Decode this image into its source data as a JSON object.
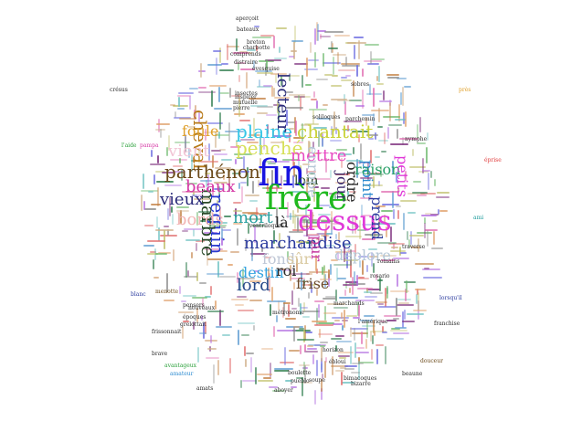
{
  "words": [
    {
      "id": "fin",
      "text": "fin",
      "color": "#1a14e0"
    },
    {
      "id": "frere",
      "text": "frère",
      "color": "#1fb91f"
    },
    {
      "id": "dessus",
      "text": "dessus",
      "color": "#e03ad8"
    },
    {
      "id": "marchandise",
      "text": "marchandise",
      "color": "#2a3a9e"
    },
    {
      "id": "cheval",
      "text": "cheval",
      "color": "#b77a1a"
    },
    {
      "id": "requin",
      "text": "requin",
      "color": "#2a3ad0"
    },
    {
      "id": "marbre",
      "text": "marbre",
      "color": "#2a4a2a"
    },
    {
      "id": "plaine",
      "text": "plaine",
      "color": "#36c6e6"
    },
    {
      "id": "chantait",
      "text": "chantait",
      "color": "#c9d23a"
    },
    {
      "id": "penche",
      "text": "penché",
      "color": "#d7e05a"
    },
    {
      "id": "mettre",
      "text": "mettre",
      "color": "#e84ac2"
    },
    {
      "id": "parthenon",
      "text": "parthénon",
      "color": "#6b4a1a"
    },
    {
      "id": "beaux",
      "text": "beaux",
      "color": "#d63aa6"
    },
    {
      "id": "vieux",
      "text": "vieux",
      "color": "#2a2a7a"
    },
    {
      "id": "bords",
      "text": "bords",
      "color": "#f2b5b5"
    },
    {
      "id": "mort",
      "text": "mort",
      "color": "#2aa0a0"
    },
    {
      "id": "la",
      "text": "là",
      "color": "#2a2a2a"
    },
    {
      "id": "fond",
      "text": "fond",
      "color": "#bfc7d6"
    },
    {
      "id": "sur",
      "text": "sûr",
      "color": "#d9c9a0"
    },
    {
      "id": "destin",
      "text": "destin",
      "color": "#36a3e0"
    },
    {
      "id": "lord",
      "text": "lord",
      "color": "#2a4a8a"
    },
    {
      "id": "roi",
      "text": "roi",
      "color": "#2a2a2a"
    },
    {
      "id": "frise",
      "text": "frise",
      "color": "#6b4a2a"
    },
    {
      "id": "deplore",
      "text": "déplore",
      "color": "#b5c7d6"
    },
    {
      "id": "pur",
      "text": "pur",
      "color": "#c53a9e"
    },
    {
      "id": "loin",
      "text": "loin",
      "color": "#2a4a2a"
    },
    {
      "id": "lecteur",
      "text": "lecteur",
      "color": "#2a2a7a"
    },
    {
      "id": "europe",
      "text": "europe",
      "color": "#b5c7d6"
    },
    {
      "id": "jour",
      "text": "jour",
      "color": "#3a2a6a"
    },
    {
      "id": "ordre",
      "text": "ordre",
      "color": "#2a2a2a"
    },
    {
      "id": "point",
      "text": "point",
      "color": "#2a8ad0"
    },
    {
      "id": "prend",
      "text": "prend",
      "color": "#2a3a9e"
    },
    {
      "id": "raison",
      "text": "raison",
      "color": "#2aa06a"
    },
    {
      "id": "petits",
      "text": "petits",
      "color": "#e03ad8"
    },
    {
      "id": "foule",
      "text": "foule",
      "color": "#e0a02a"
    },
    {
      "id": "vient",
      "text": "vient",
      "color": "#f2c5d5"
    },
    {
      "id": "ami",
      "text": "ami",
      "color": "#1a9a9a"
    },
    {
      "id": "eprise",
      "text": "éprise",
      "color": "#e03a3a"
    },
    {
      "id": "latide",
      "text": "l'aide",
      "color": "#2aa03a"
    },
    {
      "id": "pampa",
      "text": "pampa",
      "color": "#d63aa6"
    },
    {
      "id": "lorsquil",
      "text": "lorsqu'il",
      "color": "#2a3a9e"
    },
    {
      "id": "blanc",
      "text": "blanc",
      "color": "#2a3a9e"
    },
    {
      "id": "pres",
      "text": "près",
      "color": "#e0a02a"
    },
    {
      "id": "amateur",
      "text": "amateur",
      "color": "#2a8ad0"
    },
    {
      "id": "avantageux",
      "text": "avantageux",
      "color": "#2aa03a"
    },
    {
      "id": "brave",
      "text": "brave",
      "color": "#2a2a2a"
    },
    {
      "id": "douceur",
      "text": "douceur",
      "color": "#6b4a1a"
    },
    {
      "id": "beaune",
      "text": "beaune",
      "color": "#2a2a2a"
    },
    {
      "id": "menotte",
      "text": "menotte",
      "color": "#6b4a1a"
    },
    {
      "id": "cresus",
      "text": "crésus",
      "color": "#2a2a2a"
    },
    {
      "id": "aperçoit",
      "text": "aperçoit",
      "color": "#2a2a2a"
    },
    {
      "id": "bateaux",
      "text": "bateaux",
      "color": "#2a2a2a"
    },
    {
      "id": "breton",
      "text": "breton",
      "color": "#2a2a2a"
    },
    {
      "id": "charbotte",
      "text": "charbotte",
      "color": "#2a2a2a"
    },
    {
      "id": "comprends",
      "text": "comprends",
      "color": "#2a2a2a"
    },
    {
      "id": "distraire",
      "text": "distraire",
      "color": "#2a2a2a"
    },
    {
      "id": "evesquise",
      "text": "évesquise",
      "color": "#2a2a2a"
    },
    {
      "id": "insectes",
      "text": "insectes",
      "color": "#2a2a2a"
    },
    {
      "id": "inspirer",
      "text": "inspirer",
      "color": "#2a2a2a"
    },
    {
      "id": "pierre",
      "text": "pierre",
      "color": "#2a2a2a"
    },
    {
      "id": "mutuelle",
      "text": "mutuelle",
      "color": "#2a2a2a"
    },
    {
      "id": "sobres",
      "text": "sobres",
      "color": "#2a2a2a"
    },
    {
      "id": "latraverse",
      "text": "traverse",
      "color": "#2a2a2a"
    },
    {
      "id": "romains",
      "text": "romains",
      "color": "#2a2a2a"
    },
    {
      "id": "rosario",
      "text": "rosario",
      "color": "#2a2a2a"
    },
    {
      "id": "nymphe",
      "text": "nymphe",
      "color": "#2a2a2a"
    },
    {
      "id": "lamerique",
      "text": "l'amérique",
      "color": "#2a2a2a"
    },
    {
      "id": "parchemin",
      "text": "parchemin",
      "color": "#2a2a2a"
    },
    {
      "id": "soliloques",
      "text": "soliloques",
      "color": "#2a2a2a"
    },
    {
      "id": "marchands",
      "text": "marchands",
      "color": "#2a2a2a"
    },
    {
      "id": "ventriloques",
      "text": "ventriloques",
      "color": "#2a2a2a"
    },
    {
      "id": "metronome",
      "text": "métronome",
      "color": "#2a2a2a"
    },
    {
      "id": "frissonnait",
      "text": "frissonnait",
      "color": "#2a2a2a"
    },
    {
      "id": "grelottait",
      "text": "grelottait",
      "color": "#2a2a2a"
    },
    {
      "id": "nouveaux",
      "text": "nouveaux",
      "color": "#2a2a2a"
    },
    {
      "id": "pensers",
      "text": "pensers",
      "color": "#2a2a2a"
    },
    {
      "id": "epoques",
      "text": "époques",
      "color": "#2a2a2a"
    },
    {
      "id": "boulette",
      "text": "boulette",
      "color": "#2a2a2a"
    },
    {
      "id": "franchise",
      "text": "franchise",
      "color": "#2a2a2a"
    },
    {
      "id": "bimacoques",
      "text": "bimacoques",
      "color": "#2a2a2a"
    },
    {
      "id": "bizarre",
      "text": "bizarre",
      "color": "#2a2a2a"
    },
    {
      "id": "pueblo",
      "text": "pueblo",
      "color": "#2a2a2a"
    },
    {
      "id": "amatsare",
      "text": "amats",
      "color": "#2a2a2a"
    },
    {
      "id": "soupe",
      "text": "soupe",
      "color": "#2a2a2a"
    },
    {
      "id": "aboyer",
      "text": "aboyer",
      "color": "#2a2a2a"
    },
    {
      "id": "horizon",
      "text": "horizon",
      "color": "#2a2a2a"
    },
    {
      "id": "ebloui",
      "text": "ébloui",
      "color": "#2a2a2a"
    }
  ]
}
